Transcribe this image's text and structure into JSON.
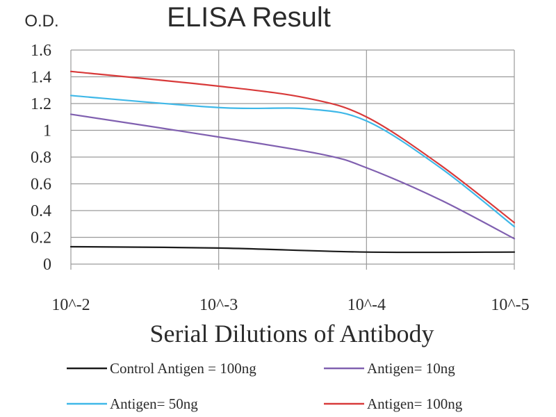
{
  "chart_data": {
    "type": "line",
    "title": "ELISA Result",
    "ylabel": "O.D.",
    "xlabel": "Serial Dilutions of Antibody",
    "categories": [
      "10^-2",
      "10^-3",
      "10^-4",
      "10^-5"
    ],
    "ylim": [
      0,
      1.6
    ],
    "yticks": [
      "1.6",
      "1.4",
      "1.2",
      "1",
      "0.8",
      "0.6",
      "0.4",
      "0.2",
      "0"
    ],
    "grid": true,
    "legend_position": "bottom",
    "series": [
      {
        "name": "Control Antigen = 100ng",
        "color": "#1a1a1a",
        "points": [
          [
            0,
            0.13
          ],
          [
            1,
            0.12
          ],
          [
            2,
            0.09
          ],
          [
            3,
            0.09
          ]
        ]
      },
      {
        "name": "Antigen= 10ng",
        "color": "#8060b0",
        "points": [
          [
            0,
            1.12
          ],
          [
            1,
            0.95
          ],
          [
            1.7,
            0.82
          ],
          [
            2,
            0.72
          ],
          [
            2.5,
            0.48
          ],
          [
            3,
            0.19
          ]
        ]
      },
      {
        "name": "Antigen= 50ng",
        "color": "#3fb8e8",
        "points": [
          [
            0,
            1.26
          ],
          [
            1,
            1.17
          ],
          [
            1.6,
            1.16
          ],
          [
            2,
            1.07
          ],
          [
            2.5,
            0.72
          ],
          [
            3,
            0.28
          ]
        ]
      },
      {
        "name": "Antigen= 100ng",
        "color": "#d83a3a",
        "points": [
          [
            0,
            1.44
          ],
          [
            1,
            1.33
          ],
          [
            1.6,
            1.24
          ],
          [
            2,
            1.1
          ],
          [
            2.5,
            0.74
          ],
          [
            3,
            0.31
          ]
        ]
      }
    ]
  }
}
